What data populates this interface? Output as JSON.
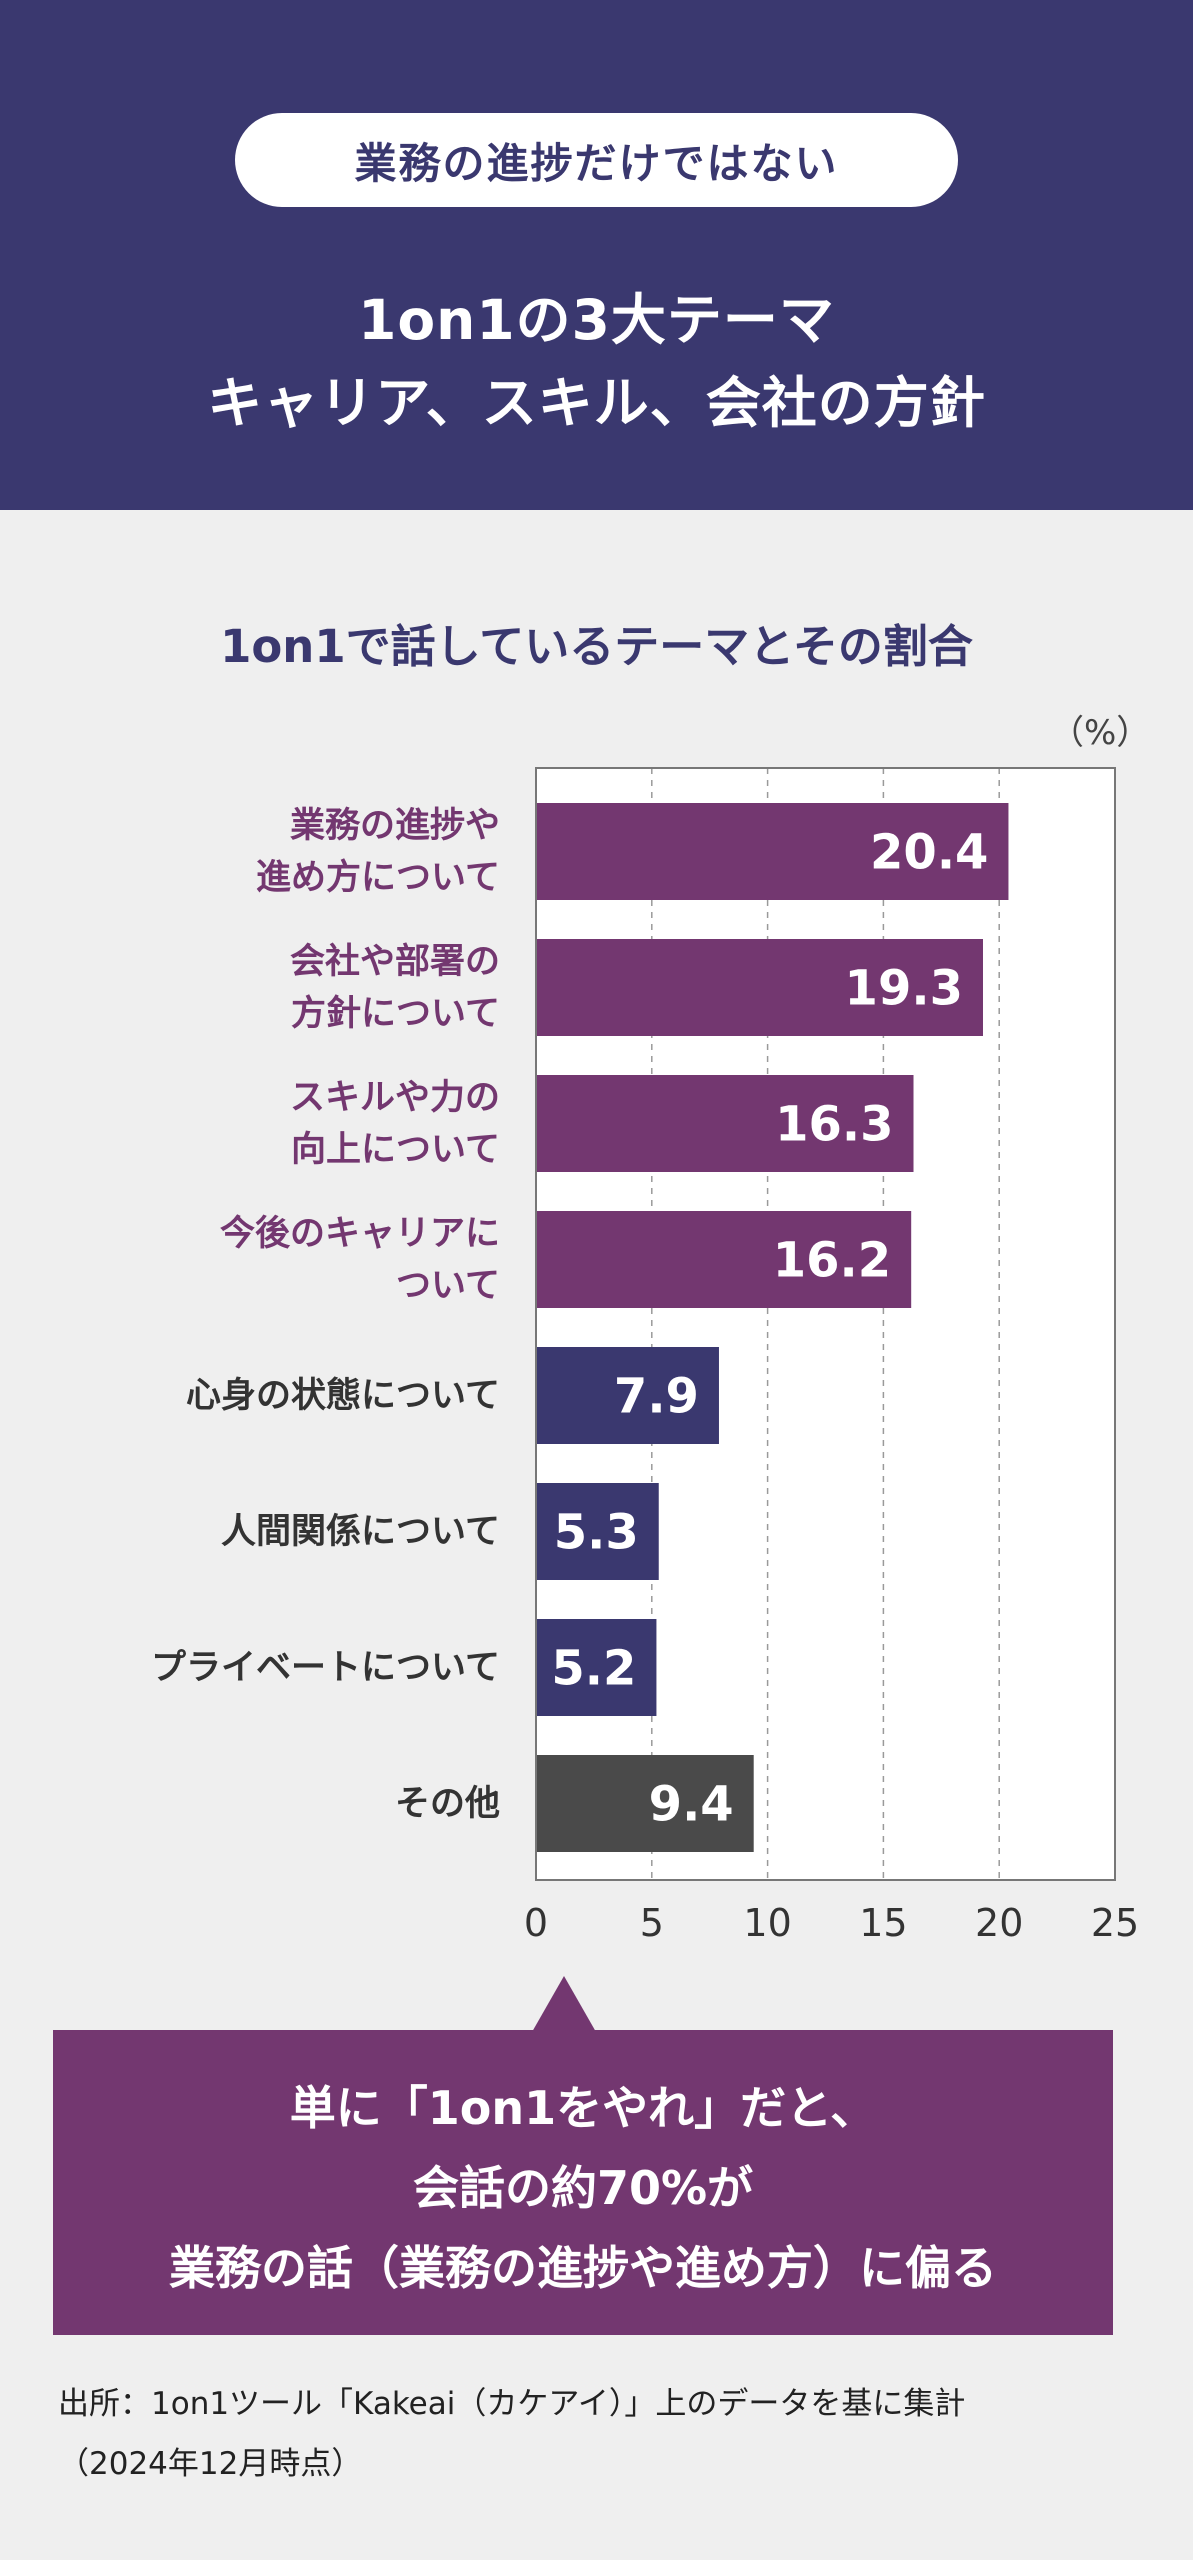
{
  "header": {
    "pill": "業務の進捗だけではない",
    "headline_line1": "1on1の3大テーマ",
    "headline_line2": "キャリア、スキル、会社の方針"
  },
  "chart_data": {
    "type": "bar",
    "orientation": "horizontal",
    "title": "1on1で話しているテーマとその割合",
    "unit": "（%）",
    "categories": [
      [
        "業務の進捗や",
        "進め方について"
      ],
      [
        "会社や部署の",
        "方針について"
      ],
      [
        "スキルや力の",
        "向上について"
      ],
      [
        "今後のキャリアに",
        "ついて"
      ],
      [
        "心身の状態について"
      ],
      [
        "人間関係について"
      ],
      [
        "プライベートについて"
      ],
      [
        "その他"
      ]
    ],
    "values": [
      20.4,
      19.3,
      16.3,
      16.2,
      7.9,
      5.3,
      5.2,
      9.4
    ],
    "value_labels": [
      "20.4",
      "19.3",
      "16.3",
      "16.2",
      "7.9",
      "5.3",
      "5.2",
      "9.4"
    ],
    "bar_colors": [
      "#733770",
      "#733770",
      "#733770",
      "#733770",
      "#3a386f",
      "#3a386f",
      "#3a386f",
      "#4a4a4a"
    ],
    "label_colors": [
      "#733770",
      "#733770",
      "#733770",
      "#733770",
      "#333333",
      "#333333",
      "#333333",
      "#333333"
    ],
    "xlim": [
      0,
      25
    ],
    "xticks": [
      "0",
      "5",
      "10",
      "15",
      "20",
      "25"
    ],
    "grid": "dashed-vertical"
  },
  "callout": {
    "line1": "単に「1on1をやれ」だと、",
    "line2": "会話の約70%が",
    "line3": "業務の話（業務の進捗や進め方）に偏る"
  },
  "source": {
    "line1": "出所：1on1ツール「Kakeai（カケアイ）」上のデータを基に集計",
    "line2": "（2024年12月時点）"
  }
}
